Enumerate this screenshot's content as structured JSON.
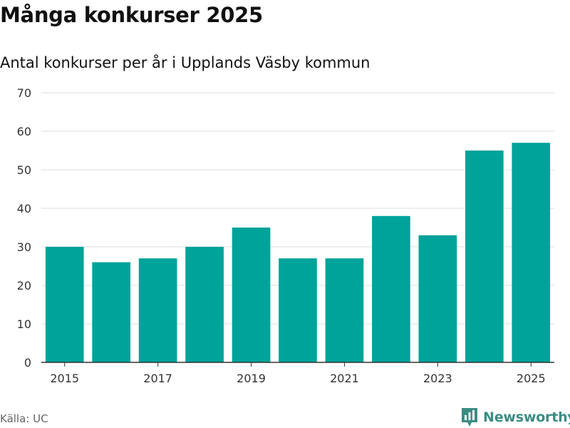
{
  "header": {
    "title": "Många konkurser 2025",
    "subtitle": "Antal konkurser per år i Upplands Väsby kommun"
  },
  "footer": {
    "source": "Källa: UC",
    "brand": "Newsworthy",
    "brand_icon": "newsworthy-logo-icon"
  },
  "colors": {
    "bar": "#00a39a",
    "gridline": "#dddddd",
    "axis": "#333333",
    "brand": "#3c8c84"
  },
  "chart_data": {
    "type": "bar",
    "title": "Många konkurser 2025",
    "subtitle": "Antal konkurser per år i Upplands Väsby kommun",
    "xlabel": "",
    "ylabel": "",
    "categories": [
      "2015",
      "2016",
      "2017",
      "2018",
      "2019",
      "2020",
      "2021",
      "2022",
      "2023",
      "2024",
      "2025"
    ],
    "values": [
      30,
      26,
      27,
      30,
      35,
      27,
      27,
      38,
      33,
      55,
      57
    ],
    "x_tick_labels": [
      "2015",
      "2017",
      "2019",
      "2021",
      "2023",
      "2025"
    ],
    "y_ticks": [
      0,
      10,
      20,
      30,
      40,
      50,
      60,
      70
    ],
    "y_tick_labels": [
      "0",
      "10",
      "20",
      "30",
      "40",
      "50",
      "60",
      "70"
    ],
    "ylim": [
      0,
      70
    ],
    "grid": true,
    "legend": "none"
  }
}
